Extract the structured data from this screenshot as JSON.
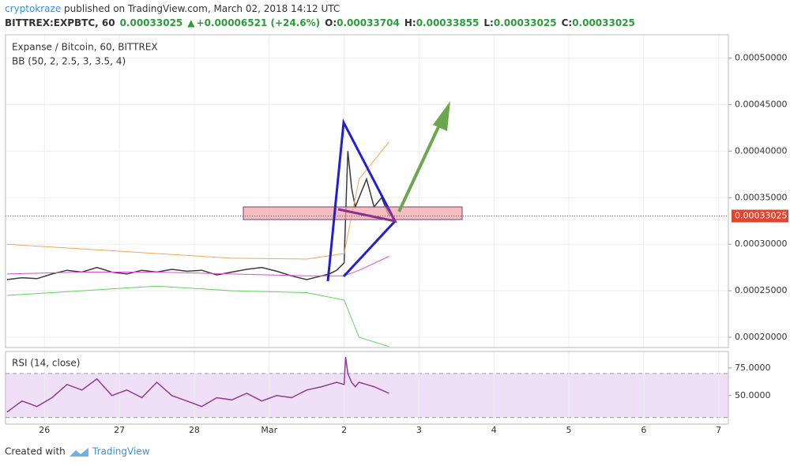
{
  "header": {
    "author": "cryptokraze",
    "published": " published on TradingView.com, March 02, 2018 14:12 UTC",
    "symbol": "BITTREX:EXPBTC, 60",
    "last": "0.00033025",
    "change": "+0.00006521 (+24.6%)",
    "o_label": "O:",
    "o": "0.00033704",
    "h_label": "H:",
    "h": "0.00033855",
    "l_label": "L:",
    "l": "0.00033025",
    "c_label": "C:",
    "c": "0.00033025"
  },
  "footer": {
    "created": "Created with",
    "brand": "TradingView"
  },
  "chart_data": [
    {
      "type": "line",
      "title": "Expanse / Bitcoin, 60, BITTREX",
      "indicator": "BB (50, 2, 2.5, 3, 3.5, 4)",
      "x": [
        -0.5,
        -0.3,
        -0.1,
        0.1,
        0.3,
        0.5,
        0.7,
        0.9,
        1.1,
        1.3,
        1.5,
        1.7,
        1.9,
        2.1,
        2.3,
        2.5,
        2.7,
        2.9,
        3.1,
        3.3,
        3.5,
        3.7,
        3.8,
        3.9,
        4.0,
        4.02,
        4.05,
        4.1,
        4.15,
        4.2,
        4.3,
        4.4,
        4.5,
        4.6
      ],
      "series": [
        {
          "color": "#3b3b3b",
          "values": [
            0.000262,
            0.000264,
            0.000263,
            0.000268,
            0.000272,
            0.00027,
            0.000275,
            0.00027,
            0.000268,
            0.000272,
            0.00027,
            0.000273,
            0.000271,
            0.000272,
            0.000267,
            0.00027,
            0.000273,
            0.000275,
            0.000271,
            0.000266,
            0.000262,
            0.000266,
            0.000268,
            0.000272,
            0.00028,
            0.00033,
            0.0004,
            0.00036,
            0.00034,
            0.00035,
            0.00037,
            0.00034,
            0.00035,
            0.00033025
          ]
        },
        {
          "color": "#f5a65b",
          "x": [
            -0.5,
            0.5,
            1.5,
            2.5,
            3.5,
            4.0,
            4.2,
            4.6
          ],
          "values": [
            0.0003,
            0.000295,
            0.00029,
            0.000285,
            0.000284,
            0.00029,
            0.00037,
            0.00041
          ]
        },
        {
          "color": "#d94fd6",
          "x": [
            -0.5,
            0.5,
            1.5,
            2.5,
            3.5,
            4.0,
            4.2,
            4.6
          ],
          "values": [
            0.000268,
            0.00027,
            0.00027,
            0.000268,
            0.000266,
            0.000266,
            0.000272,
            0.000287
          ]
        },
        {
          "color": "#5fd35f",
          "x": [
            -0.5,
            0.5,
            1.5,
            2.5,
            3.5,
            4.0,
            4.2,
            4.6
          ],
          "values": [
            0.000245,
            0.00025,
            0.000255,
            0.00025,
            0.000248,
            0.00024,
            0.0002,
            0.00019
          ]
        }
      ],
      "last_price": 0.00033025,
      "xlim": [
        -0.52,
        9.13
      ],
      "xticks": [
        {
          "value": 0,
          "label": "26"
        },
        {
          "value": 1,
          "label": "27"
        },
        {
          "value": 2,
          "label": "28"
        },
        {
          "value": 3,
          "label": "Mar"
        },
        {
          "value": 4,
          "label": "2"
        },
        {
          "value": 5,
          "label": "3"
        },
        {
          "value": 6,
          "label": "4"
        },
        {
          "value": 7,
          "label": "5"
        },
        {
          "value": 8,
          "label": "6"
        },
        {
          "value": 9,
          "label": "7"
        }
      ],
      "ylim": [
        0.000189,
        0.000525
      ],
      "yticks": [
        {
          "value": 0.0002,
          "label": "0.00020000"
        },
        {
          "value": 0.00025,
          "label": "0.00025000"
        },
        {
          "value": 0.0003,
          "label": "0.00030000"
        },
        {
          "value": 0.00035,
          "label": "0.00035000"
        },
        {
          "value": 0.0004,
          "label": "0.00040000"
        },
        {
          "value": 0.00045,
          "label": "0.00045000"
        },
        {
          "value": 0.0005,
          "label": "0.00050000"
        }
      ],
      "grid": true
    },
    {
      "type": "line",
      "title": "RSI (14, close)",
      "x": [
        -0.5,
        -0.3,
        -0.1,
        0.1,
        0.3,
        0.5,
        0.7,
        0.9,
        1.1,
        1.3,
        1.5,
        1.7,
        1.9,
        2.1,
        2.3,
        2.5,
        2.7,
        2.9,
        3.1,
        3.3,
        3.5,
        3.7,
        3.8,
        3.9,
        4.0,
        4.02,
        4.05,
        4.1,
        4.15,
        4.2,
        4.3,
        4.4,
        4.5,
        4.6
      ],
      "series": [
        {
          "color": "#8e3a96",
          "values": [
            35,
            45,
            40,
            48,
            60,
            55,
            65,
            50,
            55,
            48,
            62,
            50,
            45,
            40,
            48,
            46,
            52,
            45,
            50,
            48,
            55,
            58,
            60,
            62,
            60,
            85,
            70,
            62,
            58,
            62,
            60,
            58,
            55,
            52
          ]
        }
      ],
      "bands": [
        30,
        70
      ],
      "ylim": [
        24,
        90
      ],
      "yticks": [
        {
          "value": 50,
          "label": "50.0000"
        },
        {
          "value": 75,
          "label": "75.0000"
        }
      ]
    }
  ]
}
